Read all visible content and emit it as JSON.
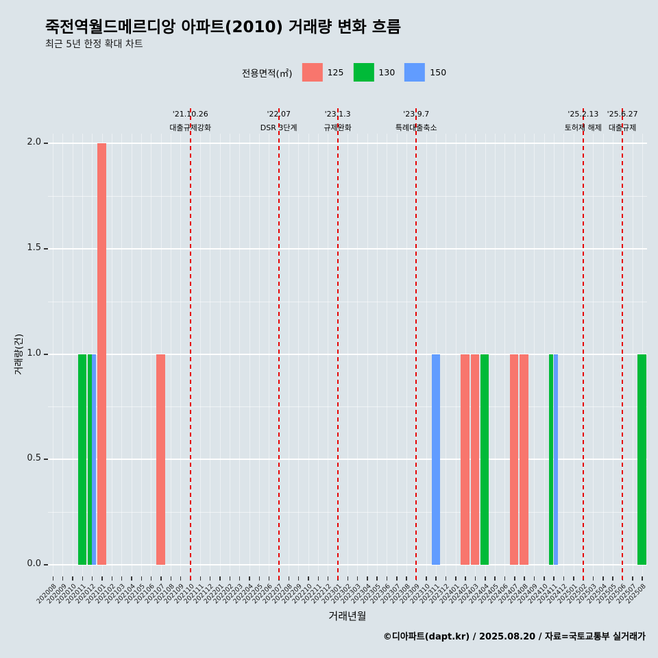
{
  "header": {
    "title": "죽전역월드메르디앙 아파트(2010) 거래량 변화 흐름",
    "subtitle": "최근 5년 한정 확대 차트"
  },
  "legend": {
    "title": "전용면적(㎡)",
    "items": [
      {
        "label": "125",
        "color": "#F8766D"
      },
      {
        "label": "130",
        "color": "#00BA38"
      },
      {
        "label": "150",
        "color": "#619CFF"
      }
    ]
  },
  "colors": {
    "background": "#dce4e9",
    "event_line": "#e60000",
    "gridline": "#ffffff"
  },
  "chart_data": {
    "type": "bar",
    "title": "죽전역월드메르디앙 아파트(2010) 거래량 변화 흐름",
    "subtitle": "최근 5년 한정 확대 차트",
    "xlabel": "거래년월",
    "ylabel": "거래량(건)",
    "ylim": [
      0,
      2
    ],
    "yticks": [
      "0.0",
      "0.5",
      "1.0",
      "1.5",
      "2.0"
    ],
    "legend_position": "top",
    "grid": true,
    "categories": [
      "202008",
      "202009",
      "202010",
      "202011",
      "202012",
      "202101",
      "202102",
      "202103",
      "202104",
      "202105",
      "202106",
      "202107",
      "202108",
      "202109",
      "202110",
      "202111",
      "202112",
      "202201",
      "202202",
      "202203",
      "202204",
      "202205",
      "202206",
      "202207",
      "202208",
      "202209",
      "202210",
      "202211",
      "202212",
      "202301",
      "202302",
      "202303",
      "202304",
      "202305",
      "202306",
      "202307",
      "202308",
      "202309",
      "202310",
      "202311",
      "202312",
      "202401",
      "202402",
      "202403",
      "202404",
      "202405",
      "202406",
      "202407",
      "202408",
      "202409",
      "202410",
      "202411",
      "202412",
      "202501",
      "202502",
      "202503",
      "202504",
      "202505",
      "202506",
      "202507",
      "202508"
    ],
    "series": [
      {
        "name": "125",
        "color": "#F8766D",
        "points": {
          "202101": 2,
          "202107": 1,
          "202402": 1,
          "202403": 1,
          "202407": 1,
          "202408": 1
        }
      },
      {
        "name": "130",
        "color": "#00BA38",
        "points": {
          "202011": 1,
          "202012": 1,
          "202404": 1,
          "202411": 1,
          "202508": 1
        }
      },
      {
        "name": "150",
        "color": "#619CFF",
        "points": {
          "202012": 1,
          "202311": 1,
          "202411": 1
        }
      }
    ],
    "events": [
      {
        "month": "202110",
        "date": "'21.10.26",
        "label": "대출규제강화"
      },
      {
        "month": "202207",
        "date": "'22.07",
        "label": "DSR 3단계"
      },
      {
        "month": "202301",
        "date": "'23.1.3",
        "label": "규제완화"
      },
      {
        "month": "202309",
        "date": "'23.9.7",
        "label": "특례대출축소"
      },
      {
        "month": "202502",
        "date": "'25.2.13",
        "label": "토허제 해제"
      },
      {
        "month": "202506",
        "date": "'25.6.27",
        "label": "대출규제"
      }
    ]
  },
  "footer": {
    "credit": "©디아파트(dapt.kr) / 2025.08.20 / 자료=국토교통부 실거래가"
  }
}
